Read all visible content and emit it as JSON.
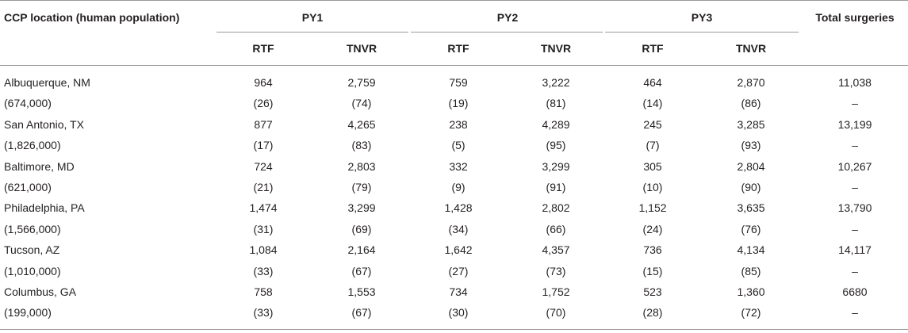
{
  "headers": {
    "location": "CCP location (human population)",
    "groups": [
      "PY1",
      "PY2",
      "PY3"
    ],
    "sub": [
      "RTF",
      "TNVR"
    ],
    "total": "Total surgeries"
  },
  "rows": [
    {
      "label": "Albuquerque, NM",
      "values": [
        "964",
        "2,759",
        "759",
        "3,222",
        "464",
        "2,870",
        "11,038"
      ]
    },
    {
      "label": "(674,000)",
      "values": [
        "(26)",
        "(74)",
        "(19)",
        "(81)",
        "(14)",
        "(86)",
        "–"
      ]
    },
    {
      "label": "San Antonio, TX",
      "values": [
        "877",
        "4,265",
        "238",
        "4,289",
        "245",
        "3,285",
        "13,199"
      ]
    },
    {
      "label": "(1,826,000)",
      "values": [
        "(17)",
        "(83)",
        "(5)",
        "(95)",
        "(7)",
        "(93)",
        "–"
      ]
    },
    {
      "label": "Baltimore, MD",
      "values": [
        "724",
        "2,803",
        "332",
        "3,299",
        "305",
        "2,804",
        "10,267"
      ]
    },
    {
      "label": "(621,000)",
      "values": [
        "(21)",
        "(79)",
        "(9)",
        "(91)",
        "(10)",
        "(90)",
        "–"
      ]
    },
    {
      "label": "Philadelphia, PA",
      "values": [
        "1,474",
        "3,299",
        "1,428",
        "2,802",
        "1,152",
        "3,635",
        "13,790"
      ]
    },
    {
      "label": "(1,566,000)",
      "values": [
        "(31)",
        "(69)",
        "(34)",
        "(66)",
        "(24)",
        "(76)",
        "–"
      ]
    },
    {
      "label": "Tucson, AZ",
      "values": [
        "1,084",
        "2,164",
        "1,642",
        "4,357",
        "736",
        "4,134",
        "14,117"
      ]
    },
    {
      "label": "(1,010,000)",
      "values": [
        "(33)",
        "(67)",
        "(27)",
        "(73)",
        "(15)",
        "(85)",
        "–"
      ]
    },
    {
      "label": "Columbus, GA",
      "values": [
        "758",
        "1,553",
        "734",
        "1,752",
        "523",
        "1,360",
        "6680"
      ]
    },
    {
      "label": "(199,000)",
      "values": [
        "(33)",
        "(67)",
        "(30)",
        "(70)",
        "(28)",
        "(72)",
        "–"
      ]
    }
  ]
}
